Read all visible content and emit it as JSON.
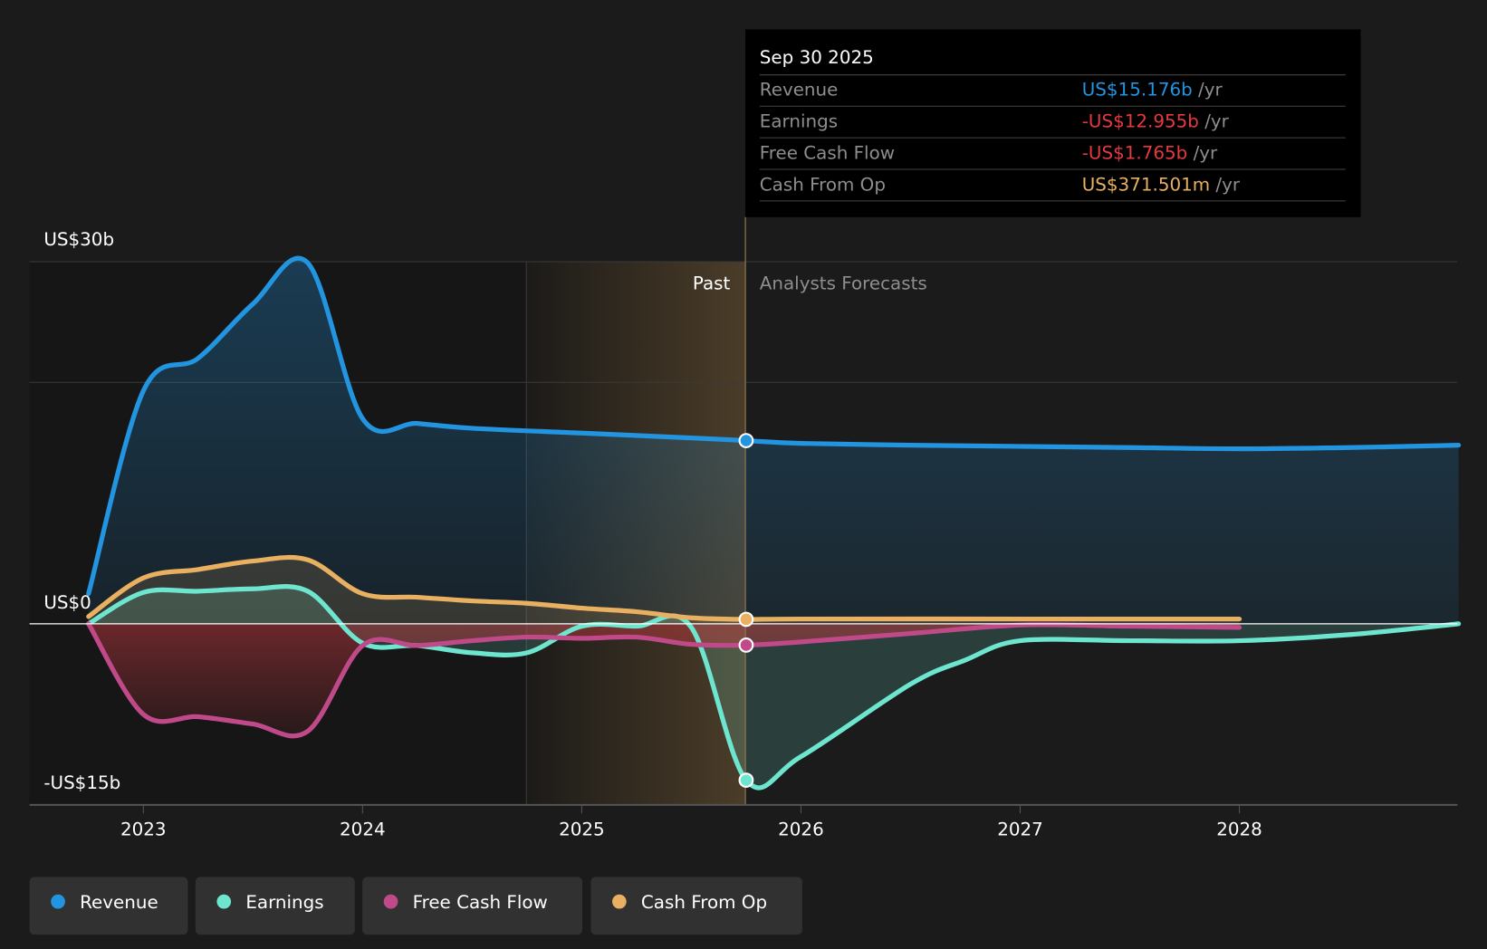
{
  "chart_data": {
    "type": "area",
    "y_unit": "US$ billions",
    "ylim": [
      -15,
      30
    ],
    "xlim": [
      2022.5,
      2029.0
    ],
    "y_ticks": [
      {
        "value": 30,
        "label": "US$30b"
      },
      {
        "value": 0,
        "label": "US$0"
      },
      {
        "value": -15,
        "label": "-US$15b"
      }
    ],
    "x_ticks": [
      {
        "value": 2023,
        "label": "2023"
      },
      {
        "value": 2024,
        "label": "2024"
      },
      {
        "value": 2025,
        "label": "2025"
      },
      {
        "value": 2026,
        "label": "2026"
      },
      {
        "value": 2027,
        "label": "2027"
      },
      {
        "value": 2028,
        "label": "2028"
      }
    ],
    "past_end": 2025.75,
    "highlight_start": 2024.75,
    "past_label": "Past",
    "forecast_label": "Analysts Forecasts",
    "series": [
      {
        "name": "Revenue",
        "color": "#2394e0",
        "x": [
          2022.75,
          2023.0,
          2023.25,
          2023.5,
          2023.75,
          2024.0,
          2024.25,
          2024.5,
          2025.0,
          2025.5,
          2025.75,
          2026.0,
          2026.5,
          2027.0,
          2027.5,
          2028.0,
          2028.5,
          2029.0
        ],
        "values": [
          2.5,
          19.3,
          22,
          26.5,
          29.9,
          17,
          16.6,
          16.2,
          15.8,
          15.4,
          15.176,
          14.95,
          14.8,
          14.7,
          14.6,
          14.5,
          14.6,
          14.8
        ]
      },
      {
        "name": "Earnings",
        "color": "#6ee6cf",
        "x": [
          2022.75,
          2023.0,
          2023.25,
          2023.5,
          2023.75,
          2024.0,
          2024.25,
          2024.5,
          2024.75,
          2025.0,
          2025.25,
          2025.5,
          2025.75,
          2026.0,
          2026.5,
          2026.75,
          2027.0,
          2027.5,
          2028.0,
          2028.5,
          2029.0
        ],
        "values": [
          0,
          2.6,
          2.7,
          2.9,
          2.7,
          -1.6,
          -1.8,
          -2.4,
          -2.4,
          -0.2,
          -0.2,
          -0.3,
          -12.955,
          -11,
          -5,
          -3,
          -1.4,
          -1.4,
          -1.4,
          -0.9,
          0
        ]
      },
      {
        "name": "Free Cash Flow",
        "color": "#c0498a",
        "x": [
          2022.75,
          2023.0,
          2023.25,
          2023.5,
          2023.75,
          2024.0,
          2024.25,
          2024.5,
          2024.75,
          2025.0,
          2025.25,
          2025.5,
          2025.75,
          2026.0,
          2026.5,
          2027.0,
          2027.5,
          2028.0
        ],
        "values": [
          0,
          -7.5,
          -7.7,
          -8.3,
          -8.9,
          -1.8,
          -1.8,
          -1.4,
          -1.1,
          -1.2,
          -1.1,
          -1.7,
          -1.765,
          -1.5,
          -0.8,
          -0.1,
          -0.2,
          -0.3
        ]
      },
      {
        "name": "Cash From Op",
        "color": "#e8b060",
        "x": [
          2022.75,
          2023.0,
          2023.25,
          2023.5,
          2023.75,
          2024.0,
          2024.25,
          2024.5,
          2024.75,
          2025.0,
          2025.25,
          2025.5,
          2025.75,
          2026.0,
          2027.0,
          2028.0
        ],
        "values": [
          0.6,
          3.8,
          4.5,
          5.2,
          5.3,
          2.5,
          2.2,
          1.9,
          1.7,
          1.3,
          1.0,
          0.5,
          0.37,
          0.4,
          0.4,
          0.4
        ]
      }
    ],
    "legend": [
      "Revenue",
      "Earnings",
      "Free Cash Flow",
      "Cash From Op"
    ],
    "legend_placement": "bottom-left"
  },
  "tooltip": {
    "date": "Sep 30 2025",
    "rows": [
      {
        "label": "Revenue",
        "value": "US$15.176b",
        "unit": "/yr",
        "color": "#2394e0"
      },
      {
        "label": "Earnings",
        "value": "-US$12.955b",
        "unit": "/yr",
        "color": "#e6393f"
      },
      {
        "label": "Free Cash Flow",
        "value": "-US$1.765b",
        "unit": "/yr",
        "color": "#e6393f"
      },
      {
        "label": "Cash From Op",
        "value": "US$371.501m",
        "unit": "/yr",
        "color": "#e8b060"
      }
    ]
  }
}
